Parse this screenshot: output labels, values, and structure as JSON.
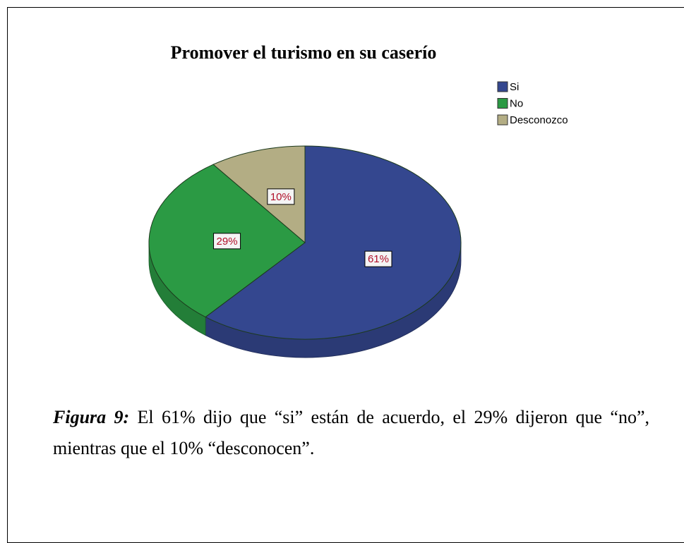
{
  "chart_data": {
    "type": "pie",
    "title": "Promover el turismo en su caserío",
    "categories": [
      "Si",
      "No",
      "Desconozco"
    ],
    "values": [
      61,
      29,
      10
    ],
    "value_labels": [
      "61%",
      "29%",
      "10%"
    ],
    "colors": [
      "#34478f",
      "#2b9a44",
      "#b3ad84"
    ]
  },
  "caption": {
    "label": "Figura 9:",
    "text": "El 61% dijo que “si” están de acuerdo, el 29% dijeron que “no”, mientras que el 10% “desconocen”."
  }
}
